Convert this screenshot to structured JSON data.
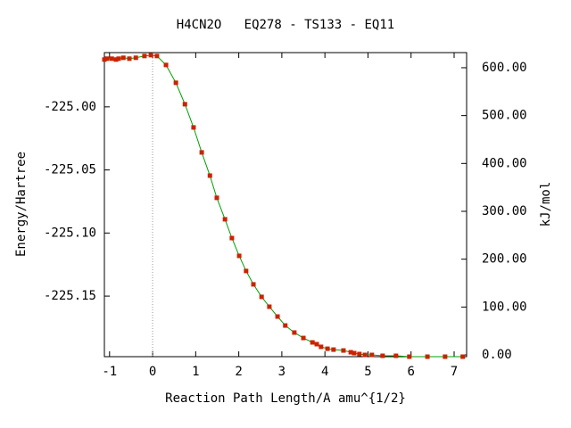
{
  "chart_data": {
    "type": "line",
    "title": "H4CN2O   EQ278 - TS133 - EQ11",
    "xlabel": "Reaction Path Length/A amu^{1/2}",
    "ylabel": "Energy/Hartree",
    "y2label": "kJ/mol",
    "x": [
      -1.12,
      -1.06,
      -0.95,
      -0.85,
      -0.79,
      -0.68,
      -0.54,
      -0.39,
      -0.19,
      -0.04,
      0.1,
      0.31,
      0.54,
      0.75,
      0.95,
      1.14,
      1.33,
      1.49,
      1.68,
      1.84,
      2.01,
      2.17,
      2.34,
      2.53,
      2.71,
      2.9,
      3.08,
      3.29,
      3.5,
      3.71,
      3.81,
      3.91,
      4.06,
      4.2,
      4.43,
      4.6,
      4.68,
      4.8,
      4.93,
      5.09,
      5.34,
      5.65,
      5.96,
      6.38,
      6.79,
      7.2
    ],
    "series": [
      {
        "color": "#00a000",
        "marker_color": "#cc2200",
        "values": [
          -224.9625,
          -224.9618,
          -224.9618,
          -224.9625,
          -224.9618,
          -224.9611,
          -224.9618,
          -224.9611,
          -224.9597,
          -224.959,
          -224.9597,
          -224.9668,
          -224.9809,
          -224.9979,
          -225.0163,
          -225.0361,
          -225.0545,
          -225.0721,
          -225.0891,
          -225.104,
          -225.1181,
          -225.1301,
          -225.1407,
          -225.1506,
          -225.1584,
          -225.1662,
          -225.1733,
          -225.1789,
          -225.1832,
          -225.1867,
          -225.1881,
          -225.1902,
          -225.1917,
          -225.1924,
          -225.1931,
          -225.1945,
          -225.1952,
          -225.1959,
          -225.1966,
          -225.1966,
          -225.1973,
          -225.1973,
          -225.198,
          -225.198,
          -225.198,
          -225.198
        ]
      }
    ],
    "xlim": [
      -1.12,
      7.29
    ],
    "xticks": [
      -1,
      0,
      1,
      2,
      3,
      4,
      5,
      6,
      7
    ],
    "ylim": [
      -225.198,
      -224.957
    ],
    "yticks": [
      {
        "value": -225.0,
        "label": "-225.00"
      },
      {
        "value": -225.05,
        "label": "-225.05"
      },
      {
        "value": -225.1,
        "label": "-225.10"
      },
      {
        "value": -225.15,
        "label": "-225.15"
      }
    ],
    "y2lim": [
      -3.7,
      631.6
    ],
    "y2ticks": [
      {
        "value": 0,
        "label": "0.00"
      },
      {
        "value": 100,
        "label": "100.00"
      },
      {
        "value": 200,
        "label": "200.00"
      },
      {
        "value": 300,
        "label": "300.00"
      },
      {
        "value": 400,
        "label": "400.00"
      },
      {
        "value": 500,
        "label": "500.00"
      },
      {
        "value": 600,
        "label": "600.00"
      }
    ],
    "vline_x": 0
  }
}
